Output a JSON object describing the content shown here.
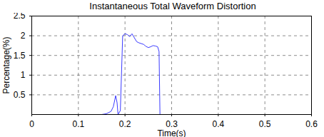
{
  "chart_data": {
    "type": "line",
    "title": "Instantaneous Total Waveform Distortion",
    "x_label": "Time(s)",
    "y_label": "Percentage(%)",
    "x": [
      0,
      0.05,
      0.1,
      0.15,
      0.16,
      0.17,
      0.175,
      0.18,
      0.183,
      0.185,
      0.19,
      0.195,
      0.2,
      0.205,
      0.21,
      0.215,
      0.22,
      0.225,
      0.23,
      0.235,
      0.24,
      0.245,
      0.25,
      0.255,
      0.26,
      0.265,
      0.27,
      0.273,
      0.275,
      0.3,
      0.4,
      0.5,
      0.6
    ],
    "values": [
      0,
      0,
      0,
      0,
      0.02,
      0.08,
      0.2,
      0.48,
      0.3,
      0,
      0.1,
      2.0,
      2.05,
      2.03,
      1.98,
      2.05,
      1.95,
      1.85,
      1.82,
      1.8,
      1.78,
      1.73,
      1.7,
      1.72,
      1.75,
      1.74,
      1.72,
      1.6,
      0,
      0,
      0,
      0,
      0
    ],
    "color": "#3a3aff",
    "line_style": "solid",
    "xlim": [
      0,
      0.6
    ],
    "xticks": [
      0,
      0.1,
      0.2,
      0.3,
      0.4,
      0.5,
      0.6
    ],
    "ylim": [
      0,
      2.5
    ],
    "yticks": [
      0.5,
      1,
      1.5,
      2,
      2.5
    ],
    "grid": true
  }
}
